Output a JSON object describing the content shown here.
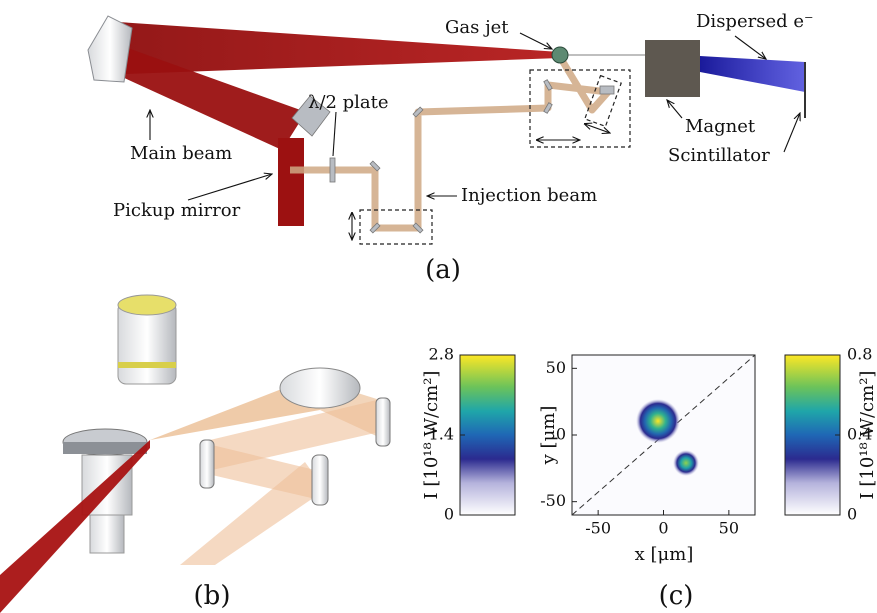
{
  "panel_a": {
    "labels": {
      "gas_jet": "Gas jet",
      "dispersed": "Dispersed e⁻",
      "main_beam": "Main beam",
      "half_wave": "λ/2 plate",
      "pickup": "Pickup mirror",
      "injection": "Injection beam",
      "magnet": "Magnet",
      "scintillator": "Scintillator"
    },
    "caption": "(a)"
  },
  "panel_b": {
    "caption": "(b)",
    "colorbar": {
      "label": "I [10¹⁸ W/cm²]",
      "clim": [
        0,
        2.8
      ],
      "ticks": [
        0,
        1.4,
        2.8
      ]
    }
  },
  "panel_c": {
    "caption": "(c)",
    "xlabel": "x [μm]",
    "ylabel": "y [μm]",
    "xlim": [
      -70,
      70
    ],
    "ylim": [
      -60,
      60
    ],
    "xticks": [
      -50,
      0,
      50
    ],
    "yticks": [
      -50,
      0,
      50
    ],
    "colorbar": {
      "label": "I [10¹⁸ W/cm²]",
      "clim": [
        0,
        0.8
      ],
      "ticks": [
        0,
        0.4,
        0.8
      ]
    }
  }
}
